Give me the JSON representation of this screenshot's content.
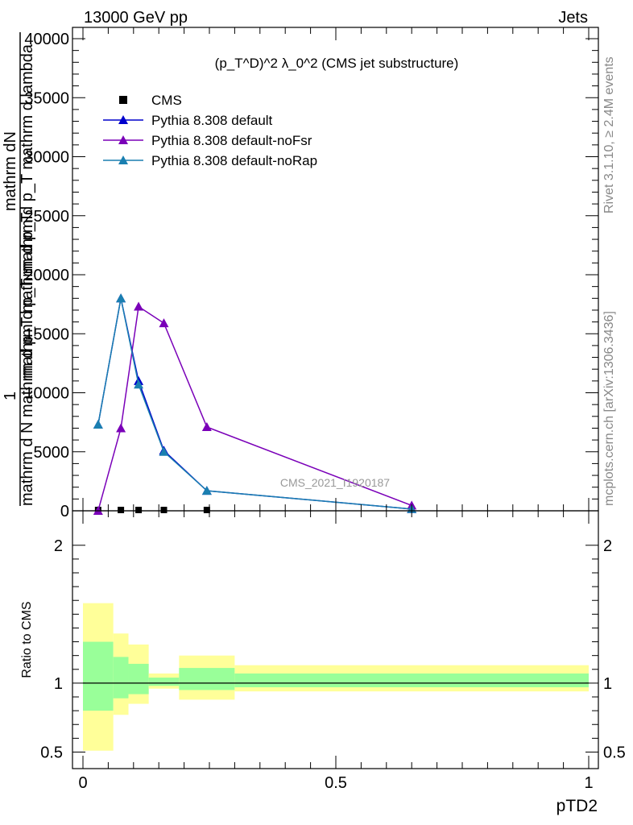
{
  "header": {
    "left": "13000 GeV pp",
    "right": "Jets"
  },
  "side_labels": {
    "rivet": "Rivet 3.1.10, ≥ 2.4M events",
    "mcplots": "mcplots.cern.ch [arXiv:1306.3436]"
  },
  "chart_data": {
    "type": "line",
    "title": "(p_T^D)^2 λ_0^2 (CMS jet substructure)",
    "xlabel": "pTD2",
    "ylabel": "1 / mathrm d N mathrm d N / mathrm d p_T mathrm d p_T mathrm d lambda",
    "ylabel_parts": {
      "one": "1",
      "numer": "mathrm dN",
      "numer2": "mathrm d p_T mathrm d p_T mathrm d lambda",
      "denom": "mathrm d N mathrm d p_T mathrm d p_T"
    },
    "analysis_label": "CMS_2021_I1920187",
    "xlim": [
      0,
      1
    ],
    "ylim": [
      0,
      40000
    ],
    "x_ticks": [
      "0",
      "0.5",
      "1"
    ],
    "y_ticks": [
      "0",
      "5000",
      "10000",
      "15000",
      "20000",
      "25000",
      "30000",
      "35000",
      "40000"
    ],
    "series": [
      {
        "name": "CMS",
        "color": "#000000",
        "marker": "square",
        "x": [
          0.03,
          0.075,
          0.11,
          0.16,
          0.245,
          0.65
        ],
        "y": [
          0,
          0,
          0,
          0,
          0,
          0
        ]
      },
      {
        "name": "Pythia 8.308 default",
        "color": "#0000cc",
        "marker": "triangle",
        "x": [
          0.03,
          0.075,
          0.11,
          0.16,
          0.245,
          0.65
        ],
        "y": [
          7300,
          18000,
          11000,
          5100,
          1700,
          150
        ]
      },
      {
        "name": "Pythia 8.308 default-noFsr",
        "color": "#7a00b8",
        "marker": "triangle",
        "x": [
          0.03,
          0.075,
          0.11,
          0.16,
          0.245,
          0.65
        ],
        "y": [
          0,
          7000,
          17300,
          15900,
          7100,
          450
        ]
      },
      {
        "name": "Pythia 8.308 default-noRap",
        "color": "#1a7fb0",
        "marker": "triangle",
        "x": [
          0.03,
          0.075,
          0.11,
          0.16,
          0.245,
          0.65
        ],
        "y": [
          7300,
          18000,
          10700,
          5000,
          1700,
          150
        ]
      }
    ],
    "ratio": {
      "ylabel": "Ratio to CMS",
      "ylim": [
        0.38,
        2.25
      ],
      "y_ticks": [
        "0.5",
        "1",
        "2"
      ],
      "bands": [
        {
          "x0": 0.0,
          "x1": 0.06,
          "yellow": [
            0.51,
            1.58
          ],
          "green": [
            0.8,
            1.3
          ]
        },
        {
          "x0": 0.06,
          "x1": 0.09,
          "yellow": [
            0.77,
            1.36
          ],
          "green": [
            0.89,
            1.19
          ]
        },
        {
          "x0": 0.09,
          "x1": 0.13,
          "yellow": [
            0.85,
            1.28
          ],
          "green": [
            0.92,
            1.14
          ]
        },
        {
          "x0": 0.13,
          "x1": 0.19,
          "yellow": [
            0.96,
            1.07
          ],
          "green": [
            0.98,
            1.04
          ]
        },
        {
          "x0": 0.19,
          "x1": 0.3,
          "yellow": [
            0.88,
            1.2
          ],
          "green": [
            0.95,
            1.11
          ]
        },
        {
          "x0": 0.3,
          "x1": 1.0,
          "yellow": [
            0.94,
            1.13
          ],
          "green": [
            0.97,
            1.07
          ]
        }
      ]
    }
  }
}
